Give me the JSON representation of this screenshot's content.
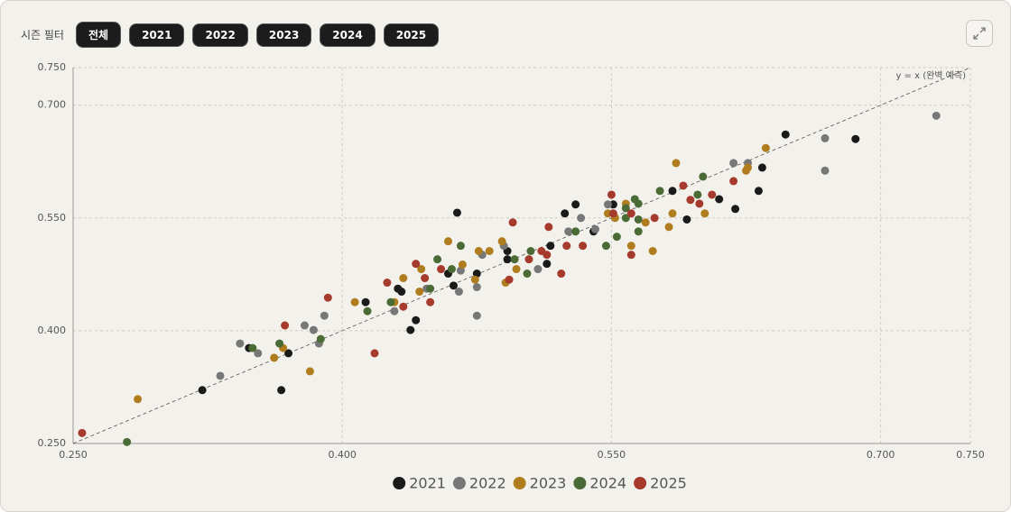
{
  "filter": {
    "label": "시즌 필터",
    "options": [
      "전체",
      "2021",
      "2022",
      "2023",
      "2024",
      "2025"
    ]
  },
  "chart_data": {
    "type": "scatter",
    "annotation": "y = x (완벽 예측)",
    "xlim": [
      0.25,
      0.75
    ],
    "ylim": [
      0.25,
      0.75
    ],
    "xticks": [
      {
        "value": 0.25,
        "label": "0.250"
      },
      {
        "value": 0.4,
        "label": "0.400"
      },
      {
        "value": 0.55,
        "label": "0.550"
      },
      {
        "value": 0.7,
        "label": "0.700"
      },
      {
        "value": 0.75,
        "label": "0.750"
      }
    ],
    "yticks": [
      {
        "value": 0.25,
        "label": "0.250"
      },
      {
        "value": 0.4,
        "label": "0.400"
      },
      {
        "value": 0.55,
        "label": "0.550"
      },
      {
        "value": 0.7,
        "label": "0.700"
      },
      {
        "value": 0.75,
        "label": "0.750"
      }
    ],
    "grid": true,
    "legend": "bottom",
    "series": [
      {
        "name": "2021",
        "color": "#1a1a1a",
        "x": [
          0.322,
          0.348,
          0.366,
          0.37,
          0.413,
          0.431,
          0.433,
          0.438,
          0.441,
          0.459,
          0.462,
          0.464,
          0.475,
          0.492,
          0.492,
          0.514,
          0.516,
          0.524,
          0.53,
          0.54,
          0.551,
          0.584,
          0.592,
          0.61,
          0.619,
          0.632,
          0.634,
          0.647,
          0.686
        ],
        "values": [
          0.321,
          0.377,
          0.321,
          0.37,
          0.438,
          0.456,
          0.452,
          0.401,
          0.414,
          0.476,
          0.46,
          0.557,
          0.476,
          0.506,
          0.495,
          0.489,
          0.513,
          0.556,
          0.568,
          0.532,
          0.568,
          0.586,
          0.548,
          0.575,
          0.562,
          0.586,
          0.617,
          0.661,
          0.655
        ]
      },
      {
        "name": "2022",
        "color": "#777777",
        "x": [
          0.332,
          0.343,
          0.353,
          0.379,
          0.384,
          0.387,
          0.39,
          0.429,
          0.447,
          0.465,
          0.466,
          0.475,
          0.475,
          0.478,
          0.49,
          0.509,
          0.526,
          0.533,
          0.541,
          0.548,
          0.618,
          0.626,
          0.669,
          0.669,
          0.731
        ],
        "values": [
          0.34,
          0.383,
          0.37,
          0.407,
          0.401,
          0.383,
          0.42,
          0.426,
          0.456,
          0.452,
          0.48,
          0.42,
          0.458,
          0.501,
          0.513,
          0.482,
          0.532,
          0.55,
          0.535,
          0.568,
          0.623,
          0.623,
          0.656,
          0.613,
          0.686
        ]
      },
      {
        "name": "2023",
        "color": "#b07d1e",
        "x": [
          0.286,
          0.362,
          0.367,
          0.382,
          0.407,
          0.429,
          0.434,
          0.443,
          0.444,
          0.459,
          0.467,
          0.474,
          0.476,
          0.482,
          0.489,
          0.491,
          0.497,
          0.548,
          0.552,
          0.558,
          0.561,
          0.569,
          0.573,
          0.582,
          0.584,
          0.586,
          0.602,
          0.625,
          0.626,
          0.636
        ],
        "values": [
          0.309,
          0.364,
          0.377,
          0.346,
          0.438,
          0.438,
          0.47,
          0.452,
          0.482,
          0.519,
          0.488,
          0.468,
          0.506,
          0.506,
          0.519,
          0.464,
          0.482,
          0.556,
          0.55,
          0.569,
          0.513,
          0.544,
          0.506,
          0.538,
          0.556,
          0.623,
          0.556,
          0.613,
          0.617,
          0.643
        ]
      },
      {
        "name": "2024",
        "color": "#4a6b35",
        "x": [
          0.28,
          0.35,
          0.365,
          0.388,
          0.414,
          0.427,
          0.449,
          0.453,
          0.461,
          0.466,
          0.496,
          0.503,
          0.505,
          0.53,
          0.547,
          0.553,
          0.558,
          0.558,
          0.563,
          0.565,
          0.565,
          0.565,
          0.577,
          0.598,
          0.601
        ],
        "values": [
          0.252,
          0.377,
          0.383,
          0.389,
          0.426,
          0.438,
          0.456,
          0.495,
          0.482,
          0.513,
          0.495,
          0.476,
          0.506,
          0.532,
          0.513,
          0.525,
          0.55,
          0.563,
          0.575,
          0.569,
          0.548,
          0.532,
          0.586,
          0.581,
          0.605
        ]
      },
      {
        "name": "2025",
        "color": "#a63a2c",
        "x": [
          0.255,
          0.368,
          0.392,
          0.418,
          0.425,
          0.434,
          0.441,
          0.446,
          0.449,
          0.455,
          0.493,
          0.495,
          0.504,
          0.511,
          0.514,
          0.515,
          0.522,
          0.525,
          0.534,
          0.55,
          0.551,
          0.561,
          0.561,
          0.574,
          0.59,
          0.594,
          0.599,
          0.606,
          0.618
        ],
        "values": [
          0.264,
          0.407,
          0.444,
          0.37,
          0.464,
          0.432,
          0.489,
          0.47,
          0.438,
          0.482,
          0.468,
          0.544,
          0.495,
          0.506,
          0.501,
          0.538,
          0.476,
          0.513,
          0.513,
          0.581,
          0.556,
          0.501,
          0.556,
          0.55,
          0.593,
          0.574,
          0.569,
          0.581,
          0.599
        ]
      }
    ]
  }
}
